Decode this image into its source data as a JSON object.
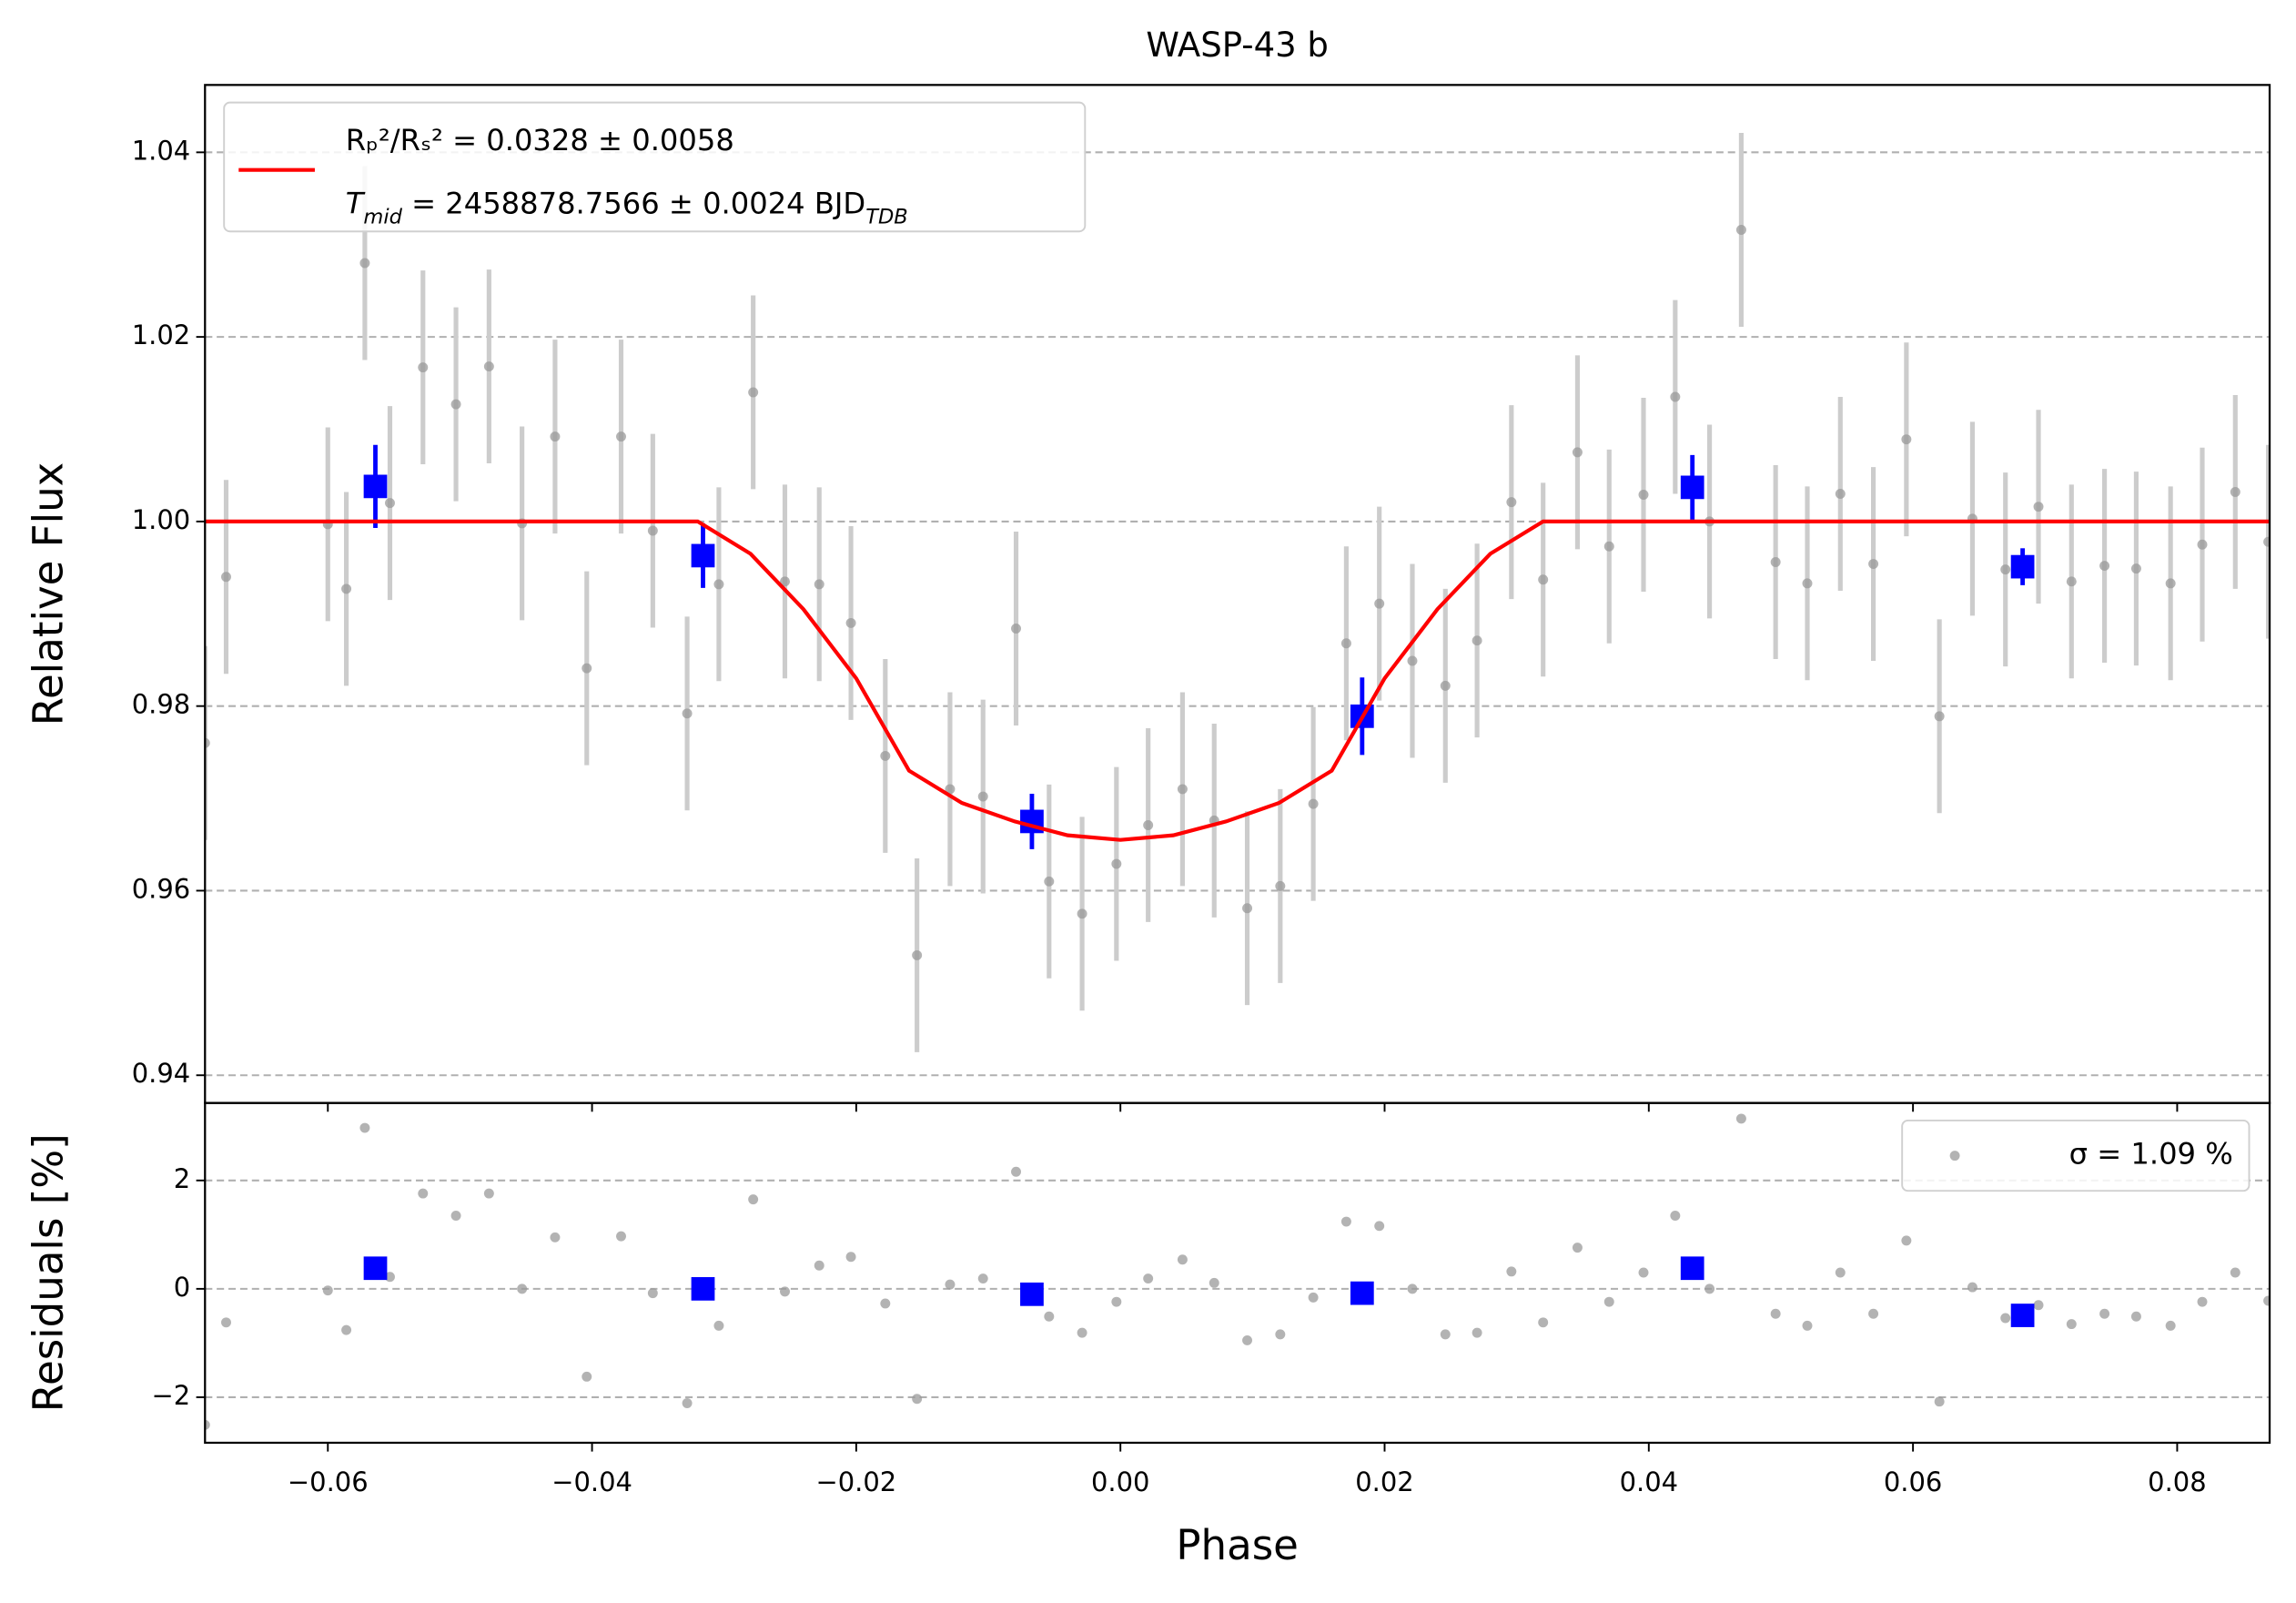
{
  "chart_data": [
    {
      "type": "scatter",
      "title": "WASP-43 b",
      "y_label": "Relative Flux",
      "xlim": [
        -0.0693,
        0.087
      ],
      "ylim": [
        0.937,
        1.0473
      ],
      "yticks": [
        0.94,
        0.96,
        0.98,
        {
          "value": 1,
          "label": "1.00"
        },
        1.02,
        1.04
      ],
      "grid": true,
      "legend": "upper left",
      "series": [
        {
          "marker": "o",
          "color": "#9a9a9a",
          "ecolor": "#cccccc",
          "x": [
            -0.0693,
            -0.0677,
            -0.06,
            -0.0586,
            -0.0572,
            -0.0553,
            -0.0528,
            -0.0503,
            -0.0478,
            -0.0453,
            -0.0428,
            -0.0404,
            -0.0378,
            -0.0354,
            -0.0328,
            -0.0304,
            -0.0278,
            -0.0254,
            -0.0228,
            -0.0204,
            -0.0178,
            -0.0154,
            -0.0129,
            -0.0104,
            -0.0079,
            -0.0054,
            -0.0029,
            -0.0003,
            0.0021,
            0.0047,
            0.0071,
            0.0096,
            0.0121,
            0.0146,
            0.0171,
            0.0196,
            0.0221,
            0.0246,
            0.027,
            0.0296,
            0.032,
            0.0346,
            0.037,
            0.0396,
            0.042,
            0.0446,
            0.047,
            0.0496,
            0.052,
            0.0545,
            0.057,
            0.0595,
            0.062,
            0.0645,
            0.067,
            0.0695,
            0.072,
            0.0745,
            0.0769,
            0.0795,
            0.0819,
            0.0844,
            0.0869
          ],
          "values": [
            0.976,
            0.994,
            0.9997,
            0.9927,
            1.028,
            1.002,
            1.0167,
            1.0127,
            1.0168,
            0.9998,
            1.0092,
            0.9841,
            1.0092,
            0.999,
            0.9792,
            0.9932,
            1.014,
            0.9935,
            0.9932,
            0.989,
            0.9746,
            0.953,
            0.971,
            0.9702,
            0.9884,
            0.961,
            0.9575,
            0.9629,
            0.9671,
            0.971,
            0.9676,
            0.9581,
            0.9605,
            0.9694,
            0.9868,
            0.9911,
            0.9849,
            0.9822,
            0.9871,
            1.0021,
            0.9937,
            1.0075,
            0.9973,
            1.0029,
            1.0135,
            1.0,
            1.0316,
            0.9956,
            0.9933,
            1.003,
            0.9954,
            1.0089,
            0.9789,
            1.0003,
            0.9948,
            1.0016,
            0.9935,
            0.9952,
            0.9949,
            0.9933,
            0.9975,
            1.0032,
            0.9978
          ],
          "errors": [
            0.0105,
            0.0105,
            0.0105,
            0.0105,
            0.0105,
            0.0105,
            0.0105,
            0.0105,
            0.0105,
            0.0105,
            0.0105,
            0.0105,
            0.0105,
            0.0105,
            0.0105,
            0.0105,
            0.0105,
            0.0105,
            0.0105,
            0.0105,
            0.0105,
            0.0105,
            0.0105,
            0.0105,
            0.0105,
            0.0105,
            0.0105,
            0.0105,
            0.0105,
            0.0105,
            0.0105,
            0.0105,
            0.0105,
            0.0105,
            0.0105,
            0.0105,
            0.0105,
            0.0105,
            0.0105,
            0.0105,
            0.0105,
            0.0105,
            0.0105,
            0.0105,
            0.0105,
            0.0105,
            0.0105,
            0.0105,
            0.0105,
            0.0105,
            0.0105,
            0.0105,
            0.0105,
            0.0105,
            0.0105,
            0.0105,
            0.0105,
            0.0105,
            0.0105,
            0.0105,
            0.0105,
            0.0105,
            0.0105
          ]
        },
        {
          "marker": "s",
          "color": "blue",
          "ecolor": "blue",
          "x": [
            -0.0564,
            -0.0316,
            -0.0067,
            0.0183,
            0.0433,
            0.0683
          ],
          "values": [
            1.0038,
            0.9963,
            0.9675,
            0.9789,
            1.0037,
            0.9951
          ],
          "errors": [
            0.0045,
            0.0035,
            0.003,
            0.0042,
            0.0035,
            0.002
          ]
        },
        {
          "type": "line",
          "color": "red",
          "name_lines": [
            [
              "Rₚ²/Rₛ² = 0.0328 ± 0.0058"
            ],
            [
              "T",
              "mid",
              " = 2458878.7566 ± 0.0024 BJD",
              "TDB"
            ]
          ],
          "x": [
            -0.0693,
            -0.032,
            -0.028,
            -0.024,
            -0.02,
            -0.016,
            -0.012,
            -0.008,
            -0.004,
            0,
            0.004,
            0.008,
            0.012,
            0.016,
            0.02,
            0.024,
            0.028,
            0.032,
            0.087
          ],
          "values": [
            1.0,
            1.0,
            0.9965,
            0.9905,
            0.983,
            0.973,
            0.9695,
            0.9675,
            0.966,
            0.9655,
            0.966,
            0.9675,
            0.9695,
            0.973,
            0.983,
            0.9905,
            0.9965,
            1.0,
            1.0
          ]
        }
      ]
    },
    {
      "type": "scatter",
      "x_label": "Phase",
      "y_label": "Residuals [%]",
      "xlim": [
        -0.0693,
        0.087
      ],
      "ylim": [
        -2.84,
        3.43
      ],
      "xticks": [
        {
          "value": -0.06,
          "label": "−0.06"
        },
        {
          "value": -0.04,
          "label": "−0.04"
        },
        {
          "value": -0.02,
          "label": "−0.02"
        },
        {
          "value": 0,
          "label": "0.00"
        },
        0.02,
        0.04,
        0.06,
        0.08
      ],
      "yticks": [
        {
          "value": -2,
          "label": "−2"
        },
        0,
        2
      ],
      "grid": true,
      "legend": "upper right",
      "series": [
        {
          "name": "σ = 1.09 %",
          "marker": "o",
          "color": "#9a9a9a",
          "x": [
            -0.0693,
            -0.0677,
            -0.06,
            -0.0586,
            -0.0572,
            -0.0553,
            -0.0528,
            -0.0503,
            -0.0478,
            -0.0453,
            -0.0428,
            -0.0404,
            -0.0378,
            -0.0354,
            -0.0328,
            -0.0304,
            -0.0278,
            -0.0254,
            -0.0228,
            -0.0204,
            -0.0178,
            -0.0154,
            -0.0129,
            -0.0104,
            -0.0079,
            -0.0054,
            -0.0029,
            -0.0003,
            0.0021,
            0.0047,
            0.0071,
            0.0096,
            0.0121,
            0.0146,
            0.0171,
            0.0196,
            0.0221,
            0.0246,
            0.027,
            0.0296,
            0.032,
            0.0346,
            0.037,
            0.0396,
            0.042,
            0.0446,
            0.047,
            0.0496,
            0.052,
            0.0545,
            0.057,
            0.0595,
            0.062,
            0.0645,
            0.067,
            0.0695,
            0.072,
            0.0745,
            0.0769,
            0.0795,
            0.0819,
            0.0844,
            0.0869
          ],
          "values": [
            -2.51,
            -0.62,
            -0.03,
            -0.76,
            2.97,
            0.22,
            1.76,
            1.35,
            1.76,
            0.0,
            0.95,
            -1.62,
            0.97,
            -0.08,
            -2.11,
            -0.68,
            1.65,
            -0.05,
            0.43,
            0.59,
            -0.27,
            -2.03,
            0.08,
            0.19,
            2.16,
            -0.51,
            -0.81,
            -0.24,
            0.19,
            0.54,
            0.11,
            -0.95,
            -0.84,
            -0.16,
            1.24,
            1.16,
            0.0,
            -0.84,
            -0.81,
            0.32,
            -0.62,
            0.76,
            -0.24,
            0.3,
            1.35,
            0.0,
            3.14,
            -0.46,
            -0.68,
            0.3,
            -0.46,
            0.89,
            -2.08,
            0.03,
            -0.54,
            -0.3,
            -0.65,
            -0.46,
            -0.51,
            -0.68,
            -0.24,
            0.3,
            -0.22
          ]
        },
        {
          "marker": "s",
          "color": "blue",
          "x": [
            -0.0564,
            -0.0316,
            -0.0067,
            0.0183,
            0.0433,
            0.0683
          ],
          "values": [
            0.38,
            0.0,
            -0.1,
            -0.08,
            0.38,
            -0.49
          ]
        }
      ]
    }
  ]
}
